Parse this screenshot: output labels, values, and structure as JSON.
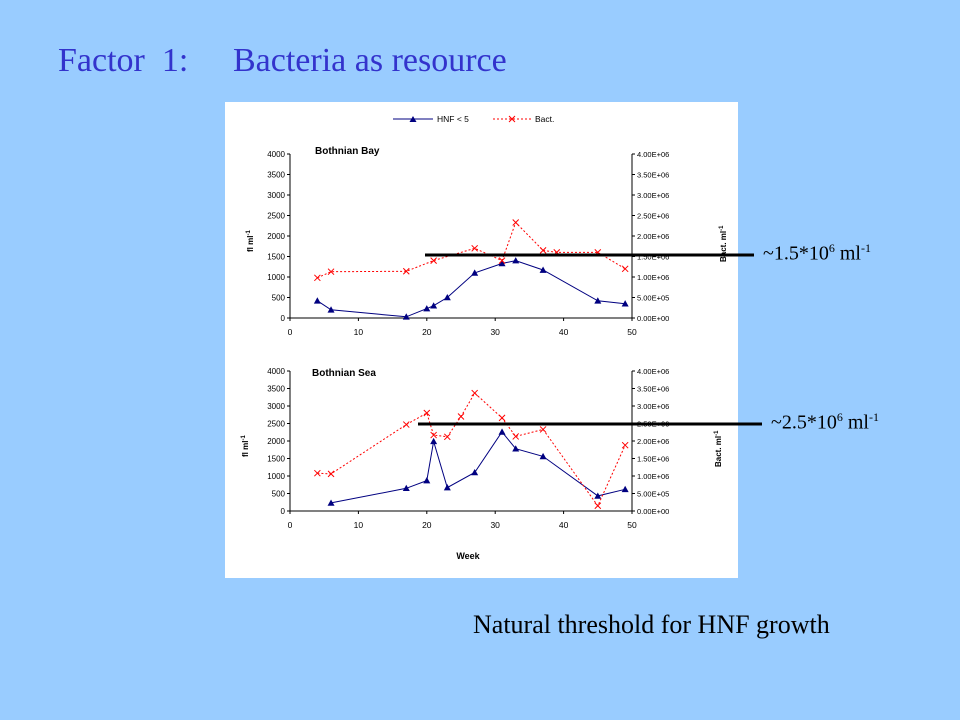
{
  "slide": {
    "title_part1": "Factor  1:",
    "title_part2": "Bacteria as resource",
    "footer": "Natural threshold for HNF growth",
    "threshold_upper": {
      "prefix": "~1.5*10",
      "exp": "6",
      "unit": " ml",
      "unit_exp": "-1"
    },
    "threshold_lower": {
      "prefix": "~2.5*10",
      "exp": "6",
      "unit": " ml",
      "unit_exp": "-1"
    },
    "colors": {
      "background": "#99ccff",
      "title": "#3333cc",
      "hnf": "#000080",
      "bact": "#ff0000"
    }
  },
  "chart_data": [
    {
      "type": "line",
      "title": "Bothnian Bay",
      "xlabel": "",
      "ylabel": "fl ml-1",
      "y2label": "Bact. ml-1",
      "xlim": [
        0,
        50
      ],
      "ylim": [
        0,
        4000
      ],
      "y2lim": [
        0,
        4000000
      ],
      "x_ticks": [
        "0",
        "10",
        "20",
        "30",
        "40",
        "50"
      ],
      "y_ticks": [
        "0",
        "500",
        "1000",
        "1500",
        "2000",
        "2500",
        "3000",
        "3500",
        "4000"
      ],
      "y2_ticks": [
        "0.00E+00",
        "5.00E+05",
        "1.00E+06",
        "1.50E+06",
        "2.00E+06",
        "2.50E+06",
        "3.00E+06",
        "3.50E+06",
        "4.00E+06"
      ],
      "legend": {
        "placement": "top-center"
      },
      "threshold": 1500000,
      "series": [
        {
          "name": "HNF < 5",
          "axis": "left",
          "marker": "triangle",
          "x": [
            4,
            6,
            17,
            20,
            21,
            23,
            27,
            31,
            33,
            37,
            45,
            49
          ],
          "y": [
            420,
            200,
            30,
            230,
            300,
            500,
            1100,
            1330,
            1400,
            1170,
            420,
            350
          ]
        },
        {
          "name": "Bact.",
          "axis": "right",
          "marker": "x",
          "x": [
            4,
            6,
            17,
            21,
            27,
            31,
            33,
            37,
            39,
            45,
            49
          ],
          "y": [
            980000,
            1130000,
            1140000,
            1400000,
            1700000,
            1400000,
            2330000,
            1650000,
            1600000,
            1600000,
            1200000
          ]
        }
      ]
    },
    {
      "type": "line",
      "title": "Bothnian Sea",
      "xlabel": "Week",
      "ylabel": "fl ml-1",
      "y2label": "Bact. ml-1",
      "xlim": [
        0,
        50
      ],
      "ylim": [
        0,
        4000
      ],
      "y2lim": [
        0,
        4000000
      ],
      "x_ticks": [
        "0",
        "10",
        "20",
        "30",
        "40",
        "50"
      ],
      "y_ticks": [
        "0",
        "500",
        "1000",
        "1500",
        "2000",
        "2500",
        "3000",
        "3500",
        "4000"
      ],
      "y2_ticks": [
        "0.00E+00",
        "5.00E+05",
        "1.00E+06",
        "1.50E+06",
        "2.00E+06",
        "2.50E+06",
        "3.00E+06",
        "3.50E+06",
        "4.00E+06"
      ],
      "threshold": 2500000,
      "series": [
        {
          "name": "HNF < 5",
          "axis": "left",
          "marker": "triangle",
          "x": [
            6,
            17,
            20,
            21,
            23,
            27,
            31,
            33,
            37,
            45,
            49
          ],
          "y": [
            230,
            650,
            870,
            1990,
            670,
            1100,
            2260,
            1780,
            1560,
            430,
            620
          ]
        },
        {
          "name": "Bact.",
          "axis": "right",
          "marker": "x",
          "x": [
            4,
            6,
            17,
            20,
            21,
            23,
            25,
            27,
            31,
            33,
            37,
            45,
            49
          ],
          "y": [
            1080000,
            1060000,
            2470000,
            2800000,
            2170000,
            2120000,
            2700000,
            3370000,
            2660000,
            2130000,
            2330000,
            150000,
            1880000
          ]
        }
      ]
    }
  ]
}
